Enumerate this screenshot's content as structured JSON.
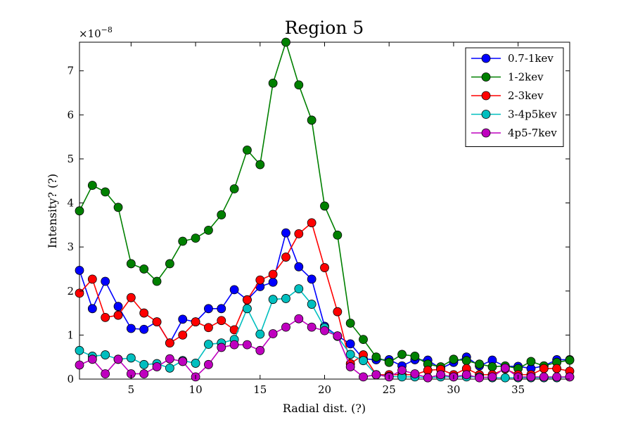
{
  "chart_data": {
    "type": "line",
    "title": "Region 5",
    "xlabel": "Radial dist. (?)",
    "ylabel": "Intensity? (?)",
    "y_multiplier": "×10",
    "y_multiplier_exp": "−8",
    "xlim": [
      1,
      39
    ],
    "ylim": [
      0,
      7.65
    ],
    "xticks": [
      5,
      10,
      15,
      20,
      25,
      30,
      35
    ],
    "yticks": [
      0,
      1,
      2,
      3,
      4,
      5,
      6,
      7
    ],
    "legend_position": "top-right",
    "grid": false,
    "x": [
      1,
      2,
      3,
      4,
      5,
      6,
      7,
      8,
      9,
      10,
      11,
      12,
      13,
      14,
      15,
      16,
      17,
      18,
      19,
      20,
      21,
      22,
      23,
      24,
      25,
      26,
      27,
      28,
      29,
      30,
      31,
      32,
      33,
      34,
      35,
      36,
      37,
      38,
      39
    ],
    "series": [
      {
        "name": "0.7-1kev",
        "color": "#0000ff",
        "values": [
          2.47,
          1.6,
          2.22,
          1.65,
          1.15,
          1.13,
          1.3,
          0.82,
          1.36,
          1.3,
          1.6,
          1.6,
          2.03,
          1.8,
          2.1,
          2.2,
          3.32,
          2.55,
          2.27,
          1.2,
          0.98,
          0.8,
          0.46,
          0.44,
          0.44,
          0.3,
          0.44,
          0.43,
          0.24,
          0.38,
          0.5,
          0.3,
          0.43,
          0.29,
          0.29,
          0.24,
          0.3,
          0.44,
          0.44
        ]
      },
      {
        "name": "1-2kev",
        "color": "#008000",
        "values": [
          3.82,
          4.4,
          4.25,
          3.9,
          2.62,
          2.5,
          2.22,
          2.62,
          3.13,
          3.2,
          3.38,
          3.73,
          4.32,
          5.2,
          4.87,
          6.72,
          7.65,
          6.68,
          5.88,
          3.93,
          3.27,
          1.27,
          0.9,
          0.5,
          0.38,
          0.56,
          0.52,
          0.34,
          0.28,
          0.45,
          0.42,
          0.34,
          0.28,
          0.3,
          0.24,
          0.4,
          0.3,
          0.38,
          0.43
        ]
      },
      {
        "name": "2-3kev",
        "color": "#ff0000",
        "values": [
          1.95,
          2.27,
          1.4,
          1.45,
          1.85,
          1.5,
          1.3,
          0.82,
          1.0,
          1.3,
          1.17,
          1.33,
          1.12,
          1.8,
          2.25,
          2.38,
          2.77,
          3.3,
          3.55,
          2.53,
          1.53,
          0.35,
          0.55,
          0.1,
          0.1,
          0.1,
          0.1,
          0.2,
          0.22,
          0.1,
          0.24,
          0.1,
          0.1,
          0.23,
          0.1,
          0.1,
          0.24,
          0.24,
          0.18
        ]
      },
      {
        "name": "3-4p5kev",
        "color": "#00bfbf",
        "values": [
          0.65,
          0.52,
          0.55,
          0.45,
          0.48,
          0.33,
          0.35,
          0.25,
          0.42,
          0.36,
          0.79,
          0.82,
          0.9,
          1.6,
          1.02,
          1.81,
          1.83,
          2.05,
          1.7,
          1.17,
          0.97,
          0.56,
          0.42,
          0.1,
          0.06,
          0.05,
          0.05,
          0.03,
          0.05,
          0.05,
          0.05,
          0.05,
          0.03,
          0.03,
          0.03,
          0.03,
          0.03,
          0.03,
          0.05
        ]
      },
      {
        "name": "4p5-7kev",
        "color": "#bf00bf",
        "values": [
          0.32,
          0.45,
          0.12,
          0.45,
          0.12,
          0.12,
          0.28,
          0.46,
          0.4,
          0.05,
          0.33,
          0.72,
          0.78,
          0.78,
          0.65,
          1.03,
          1.18,
          1.37,
          1.18,
          1.1,
          0.98,
          0.28,
          0.05,
          0.1,
          0.05,
          0.2,
          0.12,
          0.03,
          0.1,
          0.05,
          0.1,
          0.03,
          0.05,
          0.25,
          0.05,
          0.05,
          0.05,
          0.05,
          0.05
        ]
      }
    ]
  }
}
